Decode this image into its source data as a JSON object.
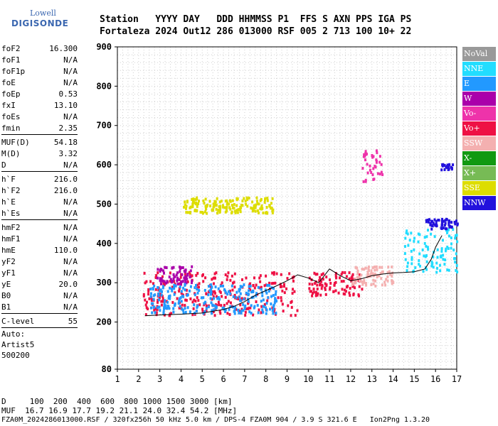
{
  "logo": {
    "line1": "Lowell",
    "line2": "DIGISONDE"
  },
  "header": {
    "row1": "Station   YYYY DAY   DDD HHMMSS P1  FFS S AXN PPS IGA PS",
    "row2": "Fortaleza 2024 Out12 286 013000 RSF 005 2 713 100 10+ 22"
  },
  "params_group1": [
    {
      "label": "foF2",
      "value": "16.300"
    },
    {
      "label": "foF1",
      "value": "N/A"
    },
    {
      "label": "foF1p",
      "value": "N/A"
    },
    {
      "label": "foE",
      "value": "N/A"
    },
    {
      "label": "foEp",
      "value": "0.53"
    },
    {
      "label": "fxI",
      "value": "13.10"
    },
    {
      "label": "foEs",
      "value": "N/A"
    },
    {
      "label": "fmin",
      "value": "2.35"
    }
  ],
  "params_group2": [
    {
      "label": "MUF(D)",
      "value": "54.18"
    },
    {
      "label": "M(D)",
      "value": "3.32"
    },
    {
      "label": "D",
      "value": "N/A"
    }
  ],
  "params_group3": [
    {
      "label": "h`F",
      "value": "216.0"
    },
    {
      "label": "h`F2",
      "value": "216.0"
    },
    {
      "label": "h`E",
      "value": "N/A"
    },
    {
      "label": "h`Es",
      "value": "N/A"
    }
  ],
  "params_group4": [
    {
      "label": "hmF2",
      "value": "N/A"
    },
    {
      "label": "hmF1",
      "value": "N/A"
    },
    {
      "label": "hmE",
      "value": "110.0"
    },
    {
      "label": "yF2",
      "value": "N/A"
    },
    {
      "label": "yF1",
      "value": "N/A"
    },
    {
      "label": "yE",
      "value": "20.0"
    },
    {
      "label": "B0",
      "value": "N/A"
    },
    {
      "label": "B1",
      "value": "N/A"
    }
  ],
  "params_group5": [
    {
      "label": "C-level",
      "value": "55"
    }
  ],
  "autoscaling": {
    "line1": "Auto:",
    "line2": "Artist5",
    "line3": "500200"
  },
  "legend": [
    {
      "label": "NoVal",
      "color": "#999999"
    },
    {
      "label": "NNE",
      "color": "#22ddff"
    },
    {
      "label": "E",
      "color": "#2299ff"
    },
    {
      "label": "W",
      "color": "#aa00aa"
    },
    {
      "label": "Vo-",
      "color": "#ee33aa"
    },
    {
      "label": "Vo+",
      "color": "#ee1144"
    },
    {
      "label": "SSW",
      "color": "#f4b0b0"
    },
    {
      "label": "X-",
      "color": "#119911"
    },
    {
      "label": "X+",
      "color": "#77bb55"
    },
    {
      "label": "SSE",
      "color": "#dddd00"
    },
    {
      "label": "NNW",
      "color": "#2211dd"
    }
  ],
  "footer": {
    "line1": "D     100  200  400  600  800 1000 1500 3000 [km]",
    "line2": "MUF  16.7 16.9 17.7 19.2 21.1 24.0 32.4 54.2 [MHz]",
    "line3": "FZA0M_2024286013000.RSF / 320fx256h 50 kHz 5.0 km / DPS-4 FZA0M 904 / 3.9 S 321.6 E   Ion2Png 1.3.20"
  },
  "chart_data": {
    "type": "scatter",
    "title": "",
    "xlabel": "",
    "ylabel": "",
    "xlim": [
      1,
      17
    ],
    "ylim": [
      80,
      900
    ],
    "x_ticks": [
      "1",
      "2",
      "3",
      "4",
      "5",
      "6",
      "7",
      "8",
      "9",
      "10",
      "11",
      "12",
      "13",
      "14",
      "15",
      "16",
      "17"
    ],
    "y_ticks": [
      "80",
      "200",
      "300",
      "400",
      "500",
      "600",
      "700",
      "800",
      "900"
    ],
    "grid": true,
    "trace": {
      "x": [
        2.3,
        3.0,
        4.0,
        5.0,
        6.0,
        6.5,
        7.0,
        7.5,
        8.0,
        8.5,
        9.0,
        9.5,
        10.0,
        10.5,
        11.0,
        11.5,
        12.0,
        12.5,
        13.0,
        13.5,
        14.0,
        14.5,
        15.0,
        15.5,
        15.8,
        16.0,
        16.3
      ],
      "y": [
        216,
        218,
        220,
        223,
        232,
        240,
        252,
        268,
        280,
        292,
        305,
        320,
        312,
        300,
        335,
        318,
        305,
        310,
        318,
        322,
        325,
        326,
        328,
        335,
        360,
        390,
        420
      ]
    },
    "echo_clusters": [
      {
        "series": "Vo+",
        "x": [
          2.2,
          9.5
        ],
        "y": [
          220,
          330
        ]
      },
      {
        "series": "W",
        "x": [
          2.8,
          4.5
        ],
        "y": [
          300,
          345
        ]
      },
      {
        "series": "E",
        "x": [
          2.5,
          8.5
        ],
        "y": [
          225,
          300
        ]
      },
      {
        "series": "SSE",
        "x": [
          4.0,
          8.3
        ],
        "y": [
          480,
          520
        ]
      },
      {
        "series": "Vo+",
        "x": [
          10.0,
          12.5
        ],
        "y": [
          270,
          330
        ]
      },
      {
        "series": "NNE",
        "x": [
          14.5,
          17.0
        ],
        "y": [
          330,
          440
        ]
      },
      {
        "series": "NNW",
        "x": [
          15.5,
          17.0
        ],
        "y": [
          440,
          465
        ]
      },
      {
        "series": "SSW",
        "x": [
          12.0,
          14.0
        ],
        "y": [
          295,
          345
        ]
      },
      {
        "series": "NNW",
        "x": [
          16.2,
          16.8
        ],
        "y": [
          590,
          605
        ]
      },
      {
        "series": "Vo-",
        "x": [
          12.5,
          13.5
        ],
        "y": [
          560,
          640
        ]
      }
    ]
  }
}
